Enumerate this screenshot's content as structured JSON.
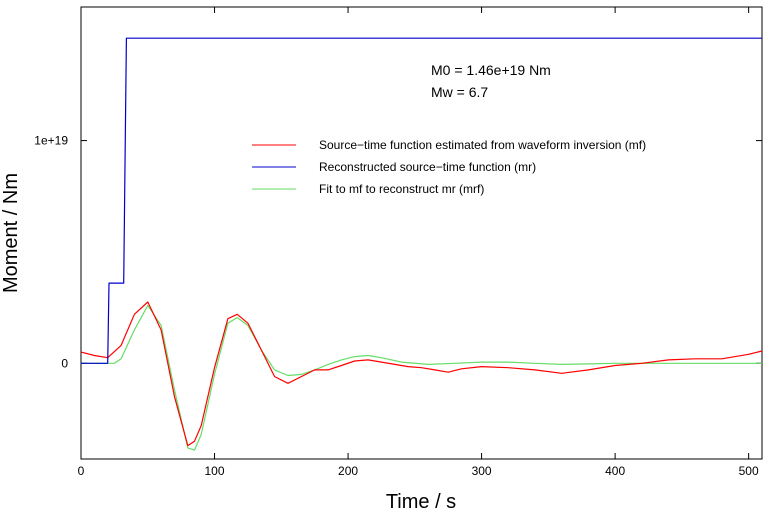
{
  "chart_data": {
    "type": "line",
    "title": "",
    "xlabel": "Time / s",
    "ylabel": "Moment / Nm",
    "xlim": [
      0,
      510
    ],
    "ylim": [
      -4.3e+18,
      1.6e+19
    ],
    "x_ticks": [
      {
        "value": 0,
        "label": "0"
      },
      {
        "value": 100,
        "label": "100"
      },
      {
        "value": 200,
        "label": "200"
      },
      {
        "value": 300,
        "label": "300"
      },
      {
        "value": 400,
        "label": "400"
      },
      {
        "value": 500,
        "label": "500"
      }
    ],
    "y_ticks": [
      {
        "value": 0,
        "label": "0"
      },
      {
        "value": 1e+19,
        "label": "1e+19"
      }
    ],
    "grid": false,
    "legend_position": "upper-right",
    "annotations": [
      "M0 = 1.46e+19 Nm",
      "Mw = 6.7"
    ],
    "series": [
      {
        "name": "Source−time function estimated from waveform inversion (mf)",
        "color": "#ff0000",
        "x": [
          0,
          10,
          20,
          30,
          40,
          50,
          60,
          70,
          80,
          85,
          90,
          100,
          110,
          117,
          125,
          135,
          145,
          155,
          165,
          175,
          185,
          195,
          205,
          215,
          225,
          235,
          245,
          255,
          265,
          275,
          285,
          300,
          320,
          340,
          360,
          380,
          400,
          420,
          440,
          460,
          480,
          500,
          510
        ],
        "y": [
          5e+17,
          3.5e+17,
          2.5e+17,
          8e+17,
          2.2e+18,
          2.75e+18,
          1.5e+18,
          -1.5e+18,
          -3.7e+18,
          -3.5e+18,
          -2.8e+18,
          -2e+17,
          2e+18,
          2.2e+18,
          1.8e+18,
          6e+17,
          -6e+17,
          -9e+17,
          -6e+17,
          -3e+17,
          -3e+17,
          -1e+17,
          1e+17,
          1.5e+17,
          5e+16,
          -5e+16,
          -1.5e+17,
          -2e+17,
          -3e+17,
          -4e+17,
          -2.5e+17,
          -1.5e+17,
          -2e+17,
          -3e+17,
          -4.5e+17,
          -3e+17,
          -1e+17,
          0.0,
          1.5e+17,
          2e+17,
          2e+17,
          4e+17,
          5.5e+17
        ]
      },
      {
        "name": "Reconstructed source−time function (mr)",
        "color": "#0000cc",
        "x": [
          0,
          20,
          21,
          32,
          34,
          510
        ],
        "y": [
          0,
          0,
          3.6e+18,
          3.6e+18,
          1.46e+19,
          1.46e+19
        ]
      },
      {
        "name": "Fit to mf to reconstruct mr (mrf)",
        "color": "#66dd66",
        "x": [
          0,
          20,
          25,
          30,
          40,
          50,
          60,
          70,
          80,
          85,
          90,
          100,
          110,
          117,
          125,
          135,
          145,
          155,
          165,
          175,
          185,
          195,
          205,
          215,
          225,
          240,
          260,
          280,
          300,
          320,
          340,
          360,
          380,
          400,
          420,
          450,
          480,
          510
        ],
        "y": [
          0,
          0,
          0,
          2e+17,
          1.5e+18,
          2.6e+18,
          1.7e+18,
          -1.2e+18,
          -3.8e+18,
          -3.9e+18,
          -3.2e+18,
          -5e+17,
          1.8e+18,
          2.05e+18,
          1.7e+18,
          6e+17,
          -3e+17,
          -5.5e+17,
          -5e+17,
          -3e+17,
          -5e+16,
          1.5e+17,
          3e+17,
          3.5e+17,
          2.5e+17,
          5e+16,
          -5e+16,
          0.0,
          5e+16,
          5e+16,
          0.0,
          -5e+16,
          -3e+16,
          0.0,
          0.0,
          0.0,
          0.0,
          0.0
        ]
      }
    ]
  }
}
